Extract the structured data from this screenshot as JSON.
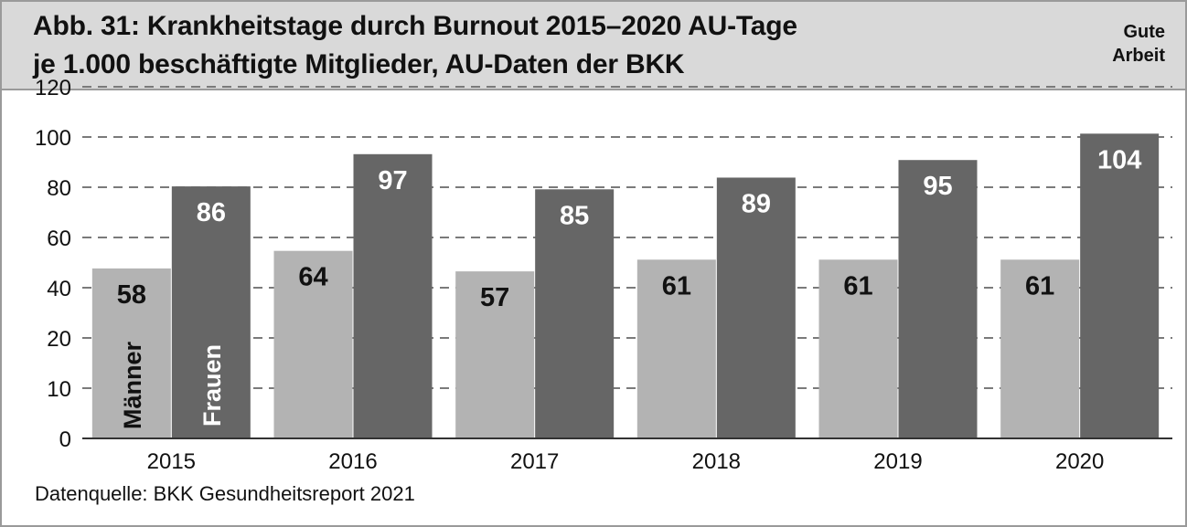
{
  "header": {
    "title_line1": "Abb. 31: Krankheitstage durch Burnout 2015–2020 AU-Tage",
    "title_line2": "je 1.000 beschäftigte Mitglieder, AU-Daten der BKK",
    "brand_line1": "Gute",
    "brand_line2": "Arbeit"
  },
  "footer": {
    "source": "Datenquelle: BKK Gesundheitsreport 2021"
  },
  "chart_data": {
    "type": "bar",
    "categories": [
      "2015",
      "2016",
      "2017",
      "2018",
      "2019",
      "2020"
    ],
    "series": [
      {
        "name": "Männer",
        "values": [
          58,
          64,
          57,
          61,
          61,
          61
        ],
        "color": "#b3b3b3",
        "label_color": "#111111"
      },
      {
        "name": "Frauen",
        "values": [
          86,
          97,
          85,
          89,
          95,
          104
        ],
        "color": "#666666",
        "label_color": "#ffffff"
      }
    ],
    "y_tick_labels": [
      "0",
      "10",
      "20",
      "40",
      "60",
      "80",
      "100",
      "120"
    ],
    "ylim": [
      0,
      120
    ],
    "grid": true,
    "grid_style": "dashed",
    "legend": "inside-first-bars"
  }
}
